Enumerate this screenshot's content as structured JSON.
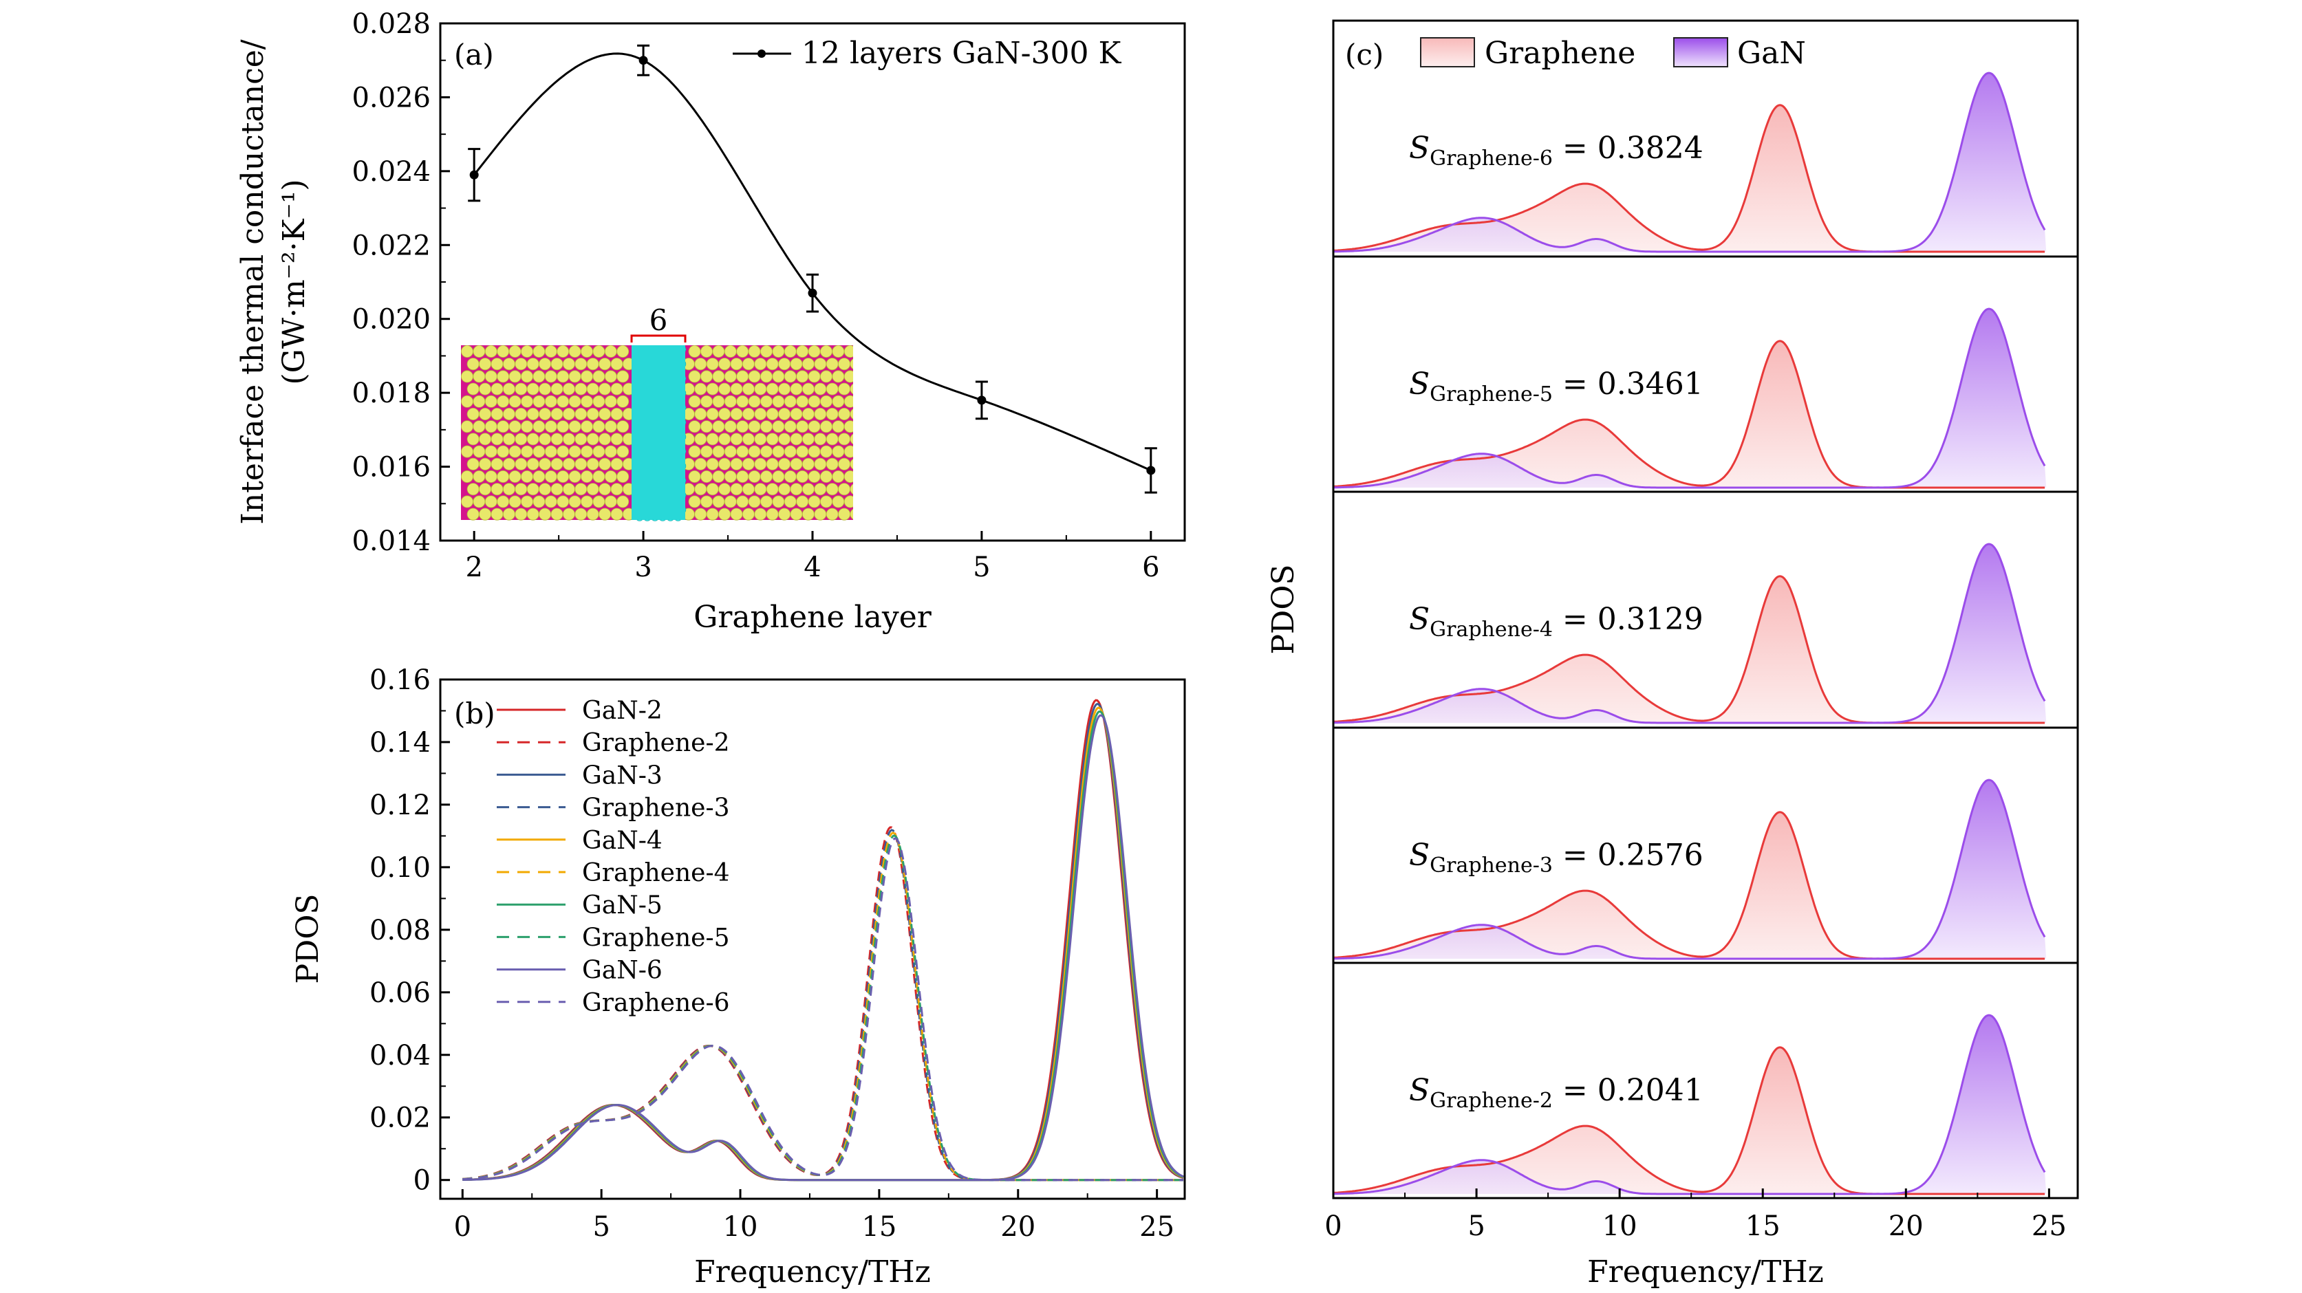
{
  "chart_data": [
    {
      "panel": "(a)",
      "type": "line",
      "xlabel": "Graphene layer",
      "ylabel_line1": "Interface thermal conductance/",
      "ylabel_line2": "(GW·m⁻²·K⁻¹)",
      "xlim": [
        1.8,
        6.2
      ],
      "ylim": [
        0.014,
        0.028
      ],
      "xticks": [
        2,
        3,
        4,
        5,
        6
      ],
      "yticks": [
        0.014,
        0.016,
        0.018,
        0.02,
        0.022,
        0.024,
        0.026,
        0.028
      ],
      "ytick_labels": [
        "0.014",
        "0.016",
        "0.018",
        "0.020",
        "0.022",
        "0.024",
        "0.026",
        "0.028"
      ],
      "legend": "top-right",
      "series": [
        {
          "name": "12 layers GaN-300 K",
          "x": [
            2,
            3,
            4,
            5,
            6
          ],
          "y": [
            0.0239,
            0.027,
            0.0207,
            0.0178,
            0.0159
          ],
          "yerr": [
            0.0007,
            0.0004,
            0.0005,
            0.0005,
            0.0006
          ],
          "color": "#000000"
        }
      ],
      "inset": {
        "label": "6",
        "label_color": "#e00000",
        "atom_colors": [
          "#e8e86a",
          "#d4148c",
          "#28d8d8"
        ]
      }
    },
    {
      "panel": "(b)",
      "type": "line",
      "xlabel": "Frequency/THz",
      "ylabel": "PDOS",
      "xlim": [
        -0.8,
        26
      ],
      "ylim": [
        -0.006,
        0.16
      ],
      "xticks": [
        0,
        5,
        10,
        15,
        20,
        25
      ],
      "yticks": [
        0,
        0.02,
        0.04,
        0.06,
        0.08,
        0.1,
        0.12,
        0.14,
        0.16
      ],
      "ytick_labels": [
        "0",
        "0.02",
        "0.04",
        "0.06",
        "0.08",
        "0.10",
        "0.12",
        "0.14",
        "0.16"
      ],
      "legend": "top-left",
      "series": [
        {
          "name": "GaN-2",
          "color": "#d62728",
          "dash": false
        },
        {
          "name": "Graphene-2",
          "color": "#d62728",
          "dash": true
        },
        {
          "name": "GaN-3",
          "color": "#3b5b92",
          "dash": false
        },
        {
          "name": "Graphene-3",
          "color": "#3b5b92",
          "dash": true
        },
        {
          "name": "GaN-4",
          "color": "#f2a900",
          "dash": false
        },
        {
          "name": "Graphene-4",
          "color": "#f2a900",
          "dash": true
        },
        {
          "name": "GaN-5",
          "color": "#2ca06c",
          "dash": false
        },
        {
          "name": "Graphene-5",
          "color": "#2ca06c",
          "dash": true
        },
        {
          "name": "GaN-6",
          "color": "#6a5fb0",
          "dash": false
        },
        {
          "name": "Graphene-6",
          "color": "#6a5fb0",
          "dash": true
        }
      ],
      "gan_peaks": [
        {
          "x0": 5.5,
          "amp": 0.024,
          "w": 1.6
        },
        {
          "x0": 9.3,
          "amp": 0.011,
          "w": 0.7
        },
        {
          "x0": 22.9,
          "amp": 0.151,
          "w": 0.95
        }
      ],
      "graphene_peaks": [
        {
          "x0": 4.3,
          "amp": 0.017,
          "w": 1.5
        },
        {
          "x0": 9.1,
          "amp": 0.041,
          "w": 1.4
        },
        {
          "x0": 6.8,
          "amp": 0.01,
          "w": 1.2
        },
        {
          "x0": 15.5,
          "amp": 0.111,
          "w": 0.8
        }
      ]
    },
    {
      "panel": "(c)",
      "type": "area",
      "xlabel": "Frequency/THz",
      "ylabel": "PDOS",
      "xlim": [
        0,
        26
      ],
      "xticks": [
        0,
        5,
        10,
        15,
        20,
        25
      ],
      "legend": "top-left",
      "legend_entries": [
        {
          "name": "Graphene",
          "color": "#e83a3a",
          "fill": "#fbd9d9"
        },
        {
          "name": "GaN",
          "color": "#9b4dea",
          "fill": "#c9a6f5"
        }
      ],
      "subplots": [
        {
          "s_symbol": "S",
          "s_subscript": "Graphene-6",
          "s_value": "= 0.3824"
        },
        {
          "s_symbol": "S",
          "s_subscript": "Graphene-5",
          "s_value": "= 0.3461"
        },
        {
          "s_symbol": "S",
          "s_subscript": "Graphene-4",
          "s_value": "= 0.3129"
        },
        {
          "s_symbol": "S",
          "s_subscript": "Graphene-3",
          "s_value": "= 0.2576"
        },
        {
          "s_symbol": "S",
          "s_subscript": "Graphene-2",
          "s_value": "= 0.2041"
        }
      ]
    }
  ]
}
